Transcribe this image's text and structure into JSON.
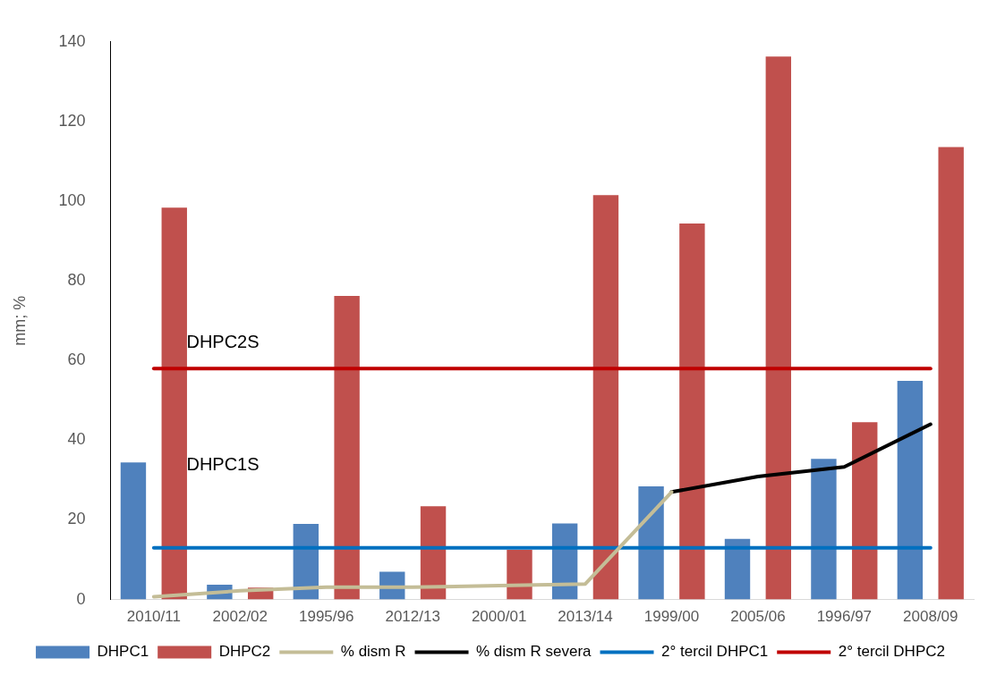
{
  "chart_data": {
    "type": "bar",
    "ylabel": "mm; %",
    "categories": [
      "2010/11",
      "2002/02",
      "1995/96",
      "2012/13",
      "2000/01",
      "2013/14",
      "1999/00",
      "2005/06",
      "1996/97",
      "2008/09"
    ],
    "series": [
      {
        "name": "DHPC1",
        "color": "#4f81bd",
        "values": [
          34.4,
          3.7,
          19,
          7,
          null,
          19.1,
          28.4,
          15.2,
          35.3,
          54.9
        ]
      },
      {
        "name": "DHPC2",
        "color": "#c0504d",
        "values": [
          98.4,
          3,
          76.2,
          23.4,
          12.5,
          101.5,
          94.4,
          136.3,
          44.5,
          113.6
        ]
      },
      {
        "name": "% dism R",
        "type": "line",
        "color": "#c4bd97",
        "values": [
          0.7,
          2.2,
          3.1,
          3.1,
          3.5,
          3.9,
          27,
          null,
          null,
          null
        ]
      },
      {
        "name": "% dism R severa",
        "type": "line",
        "color": "#000000",
        "values": [
          null,
          null,
          null,
          null,
          null,
          null,
          27,
          30.9,
          33.3,
          44
        ]
      },
      {
        "name": "2° tercil DHPC1",
        "type": "line",
        "color": "#0070c0",
        "values": [
          13,
          13,
          13,
          13,
          13,
          13,
          13,
          13,
          13,
          13
        ]
      },
      {
        "name": "2° tercil DHPC2",
        "type": "line",
        "color": "#c00000",
        "values": [
          58,
          58,
          58,
          58,
          58,
          58,
          58,
          58,
          58,
          58
        ]
      }
    ],
    "ylim": [
      0,
      140
    ],
    "yticks": [
      0,
      20,
      40,
      60,
      80,
      100,
      120,
      140
    ],
    "grid": false,
    "legend": "bottom",
    "marker": "none",
    "annotations": [
      "DHPC2S",
      "DHPC1S"
    ]
  }
}
